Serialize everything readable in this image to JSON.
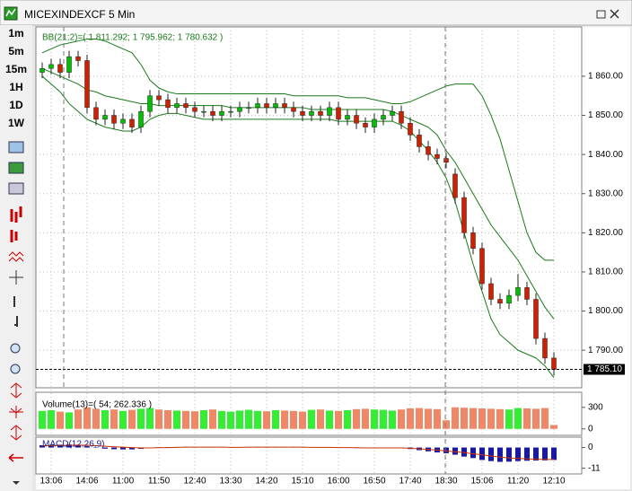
{
  "window": {
    "title": "MICEXINDEXCF 5 Min"
  },
  "toolbar": {
    "timeframes": [
      "1m",
      "5m",
      "15m",
      "1H",
      "1D",
      "1W"
    ]
  },
  "chart_data": [
    {
      "type": "candlestick",
      "title": "BB(21;2)=( 1 811.292; 1 795.962; 1 780.632 )",
      "categories": [
        null,
        "13:06",
        null,
        null,
        null,
        "14:06",
        null,
        null,
        null,
        "11:00",
        null,
        null,
        null,
        "11:50",
        null,
        null,
        null,
        "12:40",
        null,
        null,
        null,
        "13:30",
        null,
        null,
        null,
        "14:20",
        null,
        null,
        null,
        "15:10",
        null,
        null,
        null,
        "16:00",
        null,
        null,
        null,
        "16:50",
        null,
        null,
        null,
        "17:40",
        null,
        null,
        null,
        "18:30",
        null,
        null,
        null,
        "15:06",
        null,
        null,
        null,
        "11:20",
        null,
        null,
        null,
        "12:10"
      ],
      "open": [
        1861,
        1862,
        1863,
        1861,
        1865,
        1864,
        1852,
        1849,
        1850,
        1848,
        1849,
        1847,
        1851,
        1855,
        1854,
        1852,
        1853,
        1852,
        1851,
        1851,
        1850,
        1851,
        1851,
        1852,
        1852,
        1853,
        1852,
        1853,
        1852,
        1851,
        1850,
        1851,
        1850,
        1852,
        1849,
        1850,
        1848,
        1847,
        1849,
        1850,
        1851,
        1848,
        1845,
        1842,
        1840,
        1839,
        1835,
        1829,
        1820,
        1816,
        1807,
        1803,
        1802,
        1804,
        1806,
        1803,
        1793,
        1788
      ],
      "high": [
        1863.5,
        1864.5,
        1864.5,
        1866.5,
        1866.5,
        1865.5,
        1853.5,
        1851.5,
        1851.5,
        1850.5,
        1850.5,
        1852.5,
        1856.5,
        1856.5,
        1855.5,
        1854.5,
        1854.5,
        1853.5,
        1852.5,
        1852.5,
        1852.5,
        1852.5,
        1853.5,
        1853.5,
        1854.5,
        1854.5,
        1854.5,
        1854.5,
        1853.5,
        1852.5,
        1852.5,
        1852.5,
        1853.5,
        1853.5,
        1851.5,
        1851.5,
        1849.5,
        1850.5,
        1851.5,
        1852.5,
        1852.5,
        1849.5,
        1846.5,
        1843.5,
        1841.5,
        1840.5,
        1836.5,
        1830.5,
        1821.5,
        1817.5,
        1808.5,
        1804.5,
        1805.5,
        1809.5,
        1807.5,
        1804.5,
        1794.5,
        1789.5
      ],
      "low": [
        1859.5,
        1860.5,
        1859.5,
        1859.5,
        1862.5,
        1850.5,
        1847.5,
        1847.5,
        1846.5,
        1846.5,
        1845.5,
        1845.5,
        1849.5,
        1852.5,
        1850.5,
        1850.5,
        1850.5,
        1849.5,
        1849.5,
        1848.5,
        1848.5,
        1849.5,
        1849.5,
        1850.5,
        1850.5,
        1850.5,
        1850.5,
        1850.5,
        1849.5,
        1848.5,
        1848.5,
        1848.5,
        1848.5,
        1847.5,
        1847.5,
        1846.5,
        1845.5,
        1845.5,
        1847.5,
        1848.5,
        1846.5,
        1843.5,
        1840.5,
        1838.5,
        1837.5,
        1836.5,
        1827.5,
        1818.5,
        1814.5,
        1805.5,
        1801.5,
        1800.5,
        1800.5,
        1802.5,
        1801.5,
        1791.5,
        1786.5,
        1783.5
      ],
      "close": [
        1862,
        1863,
        1861,
        1865,
        1864,
        1852,
        1849,
        1850,
        1848,
        1849,
        1847,
        1851,
        1855,
        1854,
        1852,
        1853,
        1852,
        1851,
        1851,
        1850,
        1851,
        1851,
        1852,
        1852,
        1853,
        1852,
        1853,
        1852,
        1851,
        1850,
        1851,
        1850,
        1852,
        1849,
        1850,
        1848,
        1847,
        1849,
        1850,
        1851,
        1848,
        1845,
        1842,
        1840,
        1839,
        1838,
        1829,
        1820,
        1816,
        1807,
        1803,
        1802,
        1804,
        1806,
        1803,
        1793,
        1788,
        1785.1
      ],
      "up_color": "#00c000",
      "down_color": "#d02000",
      "series": [
        {
          "type": "line",
          "color": "#1a7a1a",
          "values": [
            1866,
            1867,
            1868,
            1868.5,
            1869,
            1869.5,
            1869.5,
            1869,
            1868,
            1867,
            1866,
            1863,
            1859,
            1857,
            1856,
            1855.5,
            1855.5,
            1855.5,
            1855.5,
            1855.5,
            1855.5,
            1855.5,
            1855.5,
            1855.5,
            1855.5,
            1855.5,
            1855.5,
            1855.5,
            1855,
            1855,
            1855,
            1855,
            1855,
            1855,
            1854.5,
            1854.5,
            1854.5,
            1854,
            1853.5,
            1853,
            1853,
            1853.5,
            1854.5,
            1855.5,
            1856.5,
            1857.5,
            1858,
            1858,
            1858,
            1855,
            1850,
            1844,
            1836,
            1828,
            1820,
            1815,
            1813,
            1813
          ]
        },
        {
          "type": "line",
          "color": "#1a7a1a",
          "values": [
            1862,
            1861,
            1860,
            1859,
            1858,
            1856.5,
            1856,
            1855,
            1854.5,
            1854,
            1853.5,
            1853,
            1853,
            1852.5,
            1852.5,
            1852.5,
            1852.5,
            1852.5,
            1852.5,
            1852.5,
            1852.5,
            1852,
            1852,
            1852,
            1852,
            1852,
            1852,
            1852,
            1852,
            1852,
            1851.5,
            1851.5,
            1851.5,
            1851.5,
            1851.5,
            1851.5,
            1851.5,
            1851.5,
            1851.5,
            1851,
            1850,
            1849,
            1848,
            1847,
            1845,
            1841,
            1838,
            1834,
            1830,
            1826,
            1822,
            1819,
            1816,
            1813,
            1809,
            1805,
            1801,
            1798
          ]
        },
        {
          "type": "line",
          "color": "#1a7a1a",
          "values": [
            1860,
            1858,
            1856,
            1853,
            1851,
            1849,
            1848,
            1847,
            1846.5,
            1846,
            1846,
            1847,
            1849,
            1850,
            1850.5,
            1850.5,
            1850,
            1849.5,
            1849,
            1849,
            1849,
            1849,
            1849,
            1849,
            1849,
            1849,
            1849,
            1849,
            1849,
            1849,
            1849,
            1849,
            1849,
            1848.5,
            1848.5,
            1848.5,
            1848.5,
            1848.5,
            1848.5,
            1848.5,
            1847.5,
            1846,
            1843.5,
            1841,
            1838,
            1834,
            1828,
            1820,
            1812,
            1805,
            1798,
            1794,
            1792,
            1790,
            1789,
            1788,
            1786,
            1783
          ]
        }
      ],
      "ylim": [
        1780.4,
        1872.6
      ],
      "yticks": [
        {
          "value": 1790,
          "label": "1 790.00"
        },
        {
          "value": 1800,
          "label": "1 800.00"
        },
        {
          "value": 1810,
          "label": "1 810.00"
        },
        {
          "value": 1820,
          "label": "1 820.00"
        },
        {
          "value": 1830,
          "label": "1 830.00"
        },
        {
          "value": 1840,
          "label": "1 840.00"
        },
        {
          "value": 1850,
          "label": "1 850.00"
        },
        {
          "value": 1860,
          "label": "1 860.00"
        }
      ],
      "last_price": {
        "value": 1785.1,
        "label": "1 785.10"
      },
      "grid": true
    },
    {
      "type": "bar",
      "title": "Volume(13)=( 54; 262.336 )",
      "values": [
        250,
        260,
        240,
        230,
        270,
        300,
        280,
        260,
        270,
        250,
        265,
        280,
        290,
        270,
        260,
        255,
        250,
        245,
        260,
        270,
        250,
        240,
        255,
        265,
        250,
        245,
        260,
        255,
        250,
        240,
        265,
        270,
        255,
        250,
        260,
        275,
        280,
        270,
        265,
        255,
        270,
        285,
        290,
        280,
        275,
        120,
        300,
        295,
        290,
        285,
        280,
        275,
        270,
        290,
        285,
        280,
        290,
        54
      ],
      "up_color": "#33ee33",
      "down_color": "#f08868",
      "ylim": [
        -90,
        510
      ],
      "yticks": [
        0,
        300
      ],
      "grid": false
    },
    {
      "type": "bar",
      "title": "MACD(12,26,9)",
      "series": [
        {
          "color": "#1a1aa0",
          "values": [
            1.2,
            1.4,
            1.5,
            1.6,
            1.4,
            0.6,
            -0.2,
            -0.6,
            -0.9,
            -1.0,
            -1.0,
            -0.7,
            -0.2,
            0.1,
            0.2,
            0.3,
            0.3,
            0.2,
            0.2,
            0.1,
            0.1,
            0.1,
            0.2,
            0.2,
            0.3,
            0.3,
            0.3,
            0.2,
            0.2,
            0.1,
            0.1,
            0.0,
            0.1,
            -0.1,
            -0.1,
            -0.3,
            -0.4,
            -0.3,
            -0.2,
            -0.1,
            -0.3,
            -0.8,
            -1.4,
            -2.0,
            -2.6,
            -3.0,
            -3.8,
            -4.8,
            -5.6,
            -6.6,
            -7.2,
            -7.6,
            -7.5,
            -7.2,
            -7.0,
            -6.9,
            -6.8,
            -6.6
          ]
        },
        {
          "type": "line",
          "color": "#cc3300",
          "values": [
            0.9,
            1.0,
            1.1,
            1.2,
            1.3,
            1.2,
            1.0,
            0.7,
            0.4,
            0.2,
            0.0,
            -0.2,
            -0.2,
            -0.1,
            0.0,
            0.1,
            0.2,
            0.2,
            0.2,
            0.2,
            0.2,
            0.1,
            0.1,
            0.2,
            0.2,
            0.2,
            0.2,
            0.2,
            0.2,
            0.2,
            0.1,
            0.1,
            0.1,
            0.0,
            0.0,
            -0.1,
            -0.2,
            -0.2,
            -0.2,
            -0.2,
            -0.2,
            -0.4,
            -0.7,
            -1.0,
            -1.4,
            -1.8,
            -2.2,
            -2.7,
            -3.3,
            -3.9,
            -4.5,
            -5.1,
            -5.5,
            -5.8,
            -6.0,
            -6.2,
            -6.3,
            -6.4
          ]
        }
      ],
      "ylim": [
        -14,
        5.5
      ],
      "yticks": [
        -11,
        0
      ],
      "grid": false
    }
  ]
}
